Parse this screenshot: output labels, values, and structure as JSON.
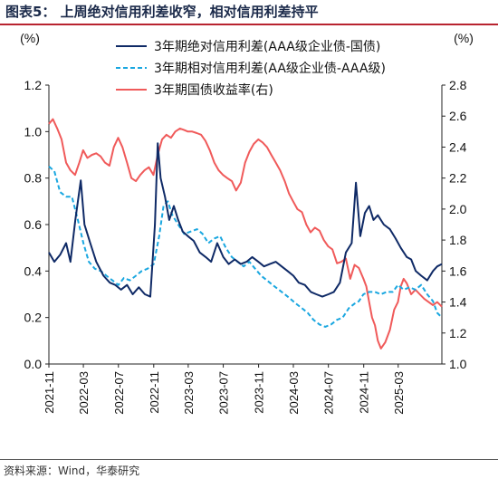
{
  "figure_title": "图表5：  上周绝对信用利差收窄，相对信用利差持平",
  "source_note": "资料来源：Wind，华泰研究",
  "chart_data": {
    "type": "line",
    "left_axis": {
      "unit_label": "(%)",
      "ylim": [
        0.0,
        1.2
      ],
      "ticks": [
        "0.0",
        "0.2",
        "0.4",
        "0.6",
        "0.8",
        "1.0",
        "1.2"
      ]
    },
    "right_axis": {
      "unit_label": "(%)",
      "ylim": [
        1.0,
        2.8
      ],
      "ticks": [
        "1.0",
        "1.2",
        "1.4",
        "1.6",
        "1.8",
        "2.0",
        "2.2",
        "2.4",
        "2.6",
        "2.8"
      ]
    },
    "x_range": [
      "2021-11-01",
      "2025-07-31"
    ],
    "x_tick_labels": [
      "2021-11",
      "2022-03",
      "2022-07",
      "2022-11",
      "2023-03",
      "2023-07",
      "2023-11",
      "2024-03",
      "2024-07",
      "2024-11",
      "2025-03"
    ],
    "legend_position": "top-center",
    "series": [
      {
        "name": "3年期绝对信用利差(AAA级企业债-国债)",
        "axis": "left",
        "color": "#0f2a66",
        "style": "solid",
        "points": [
          [
            "2021-11-01",
            0.48
          ],
          [
            "2021-11-20",
            0.44
          ],
          [
            "2021-12-10",
            0.47
          ],
          [
            "2021-12-31",
            0.52
          ],
          [
            "2022-01-15",
            0.44
          ],
          [
            "2022-02-01",
            0.62
          ],
          [
            "2022-02-20",
            0.79
          ],
          [
            "2022-03-05",
            0.6
          ],
          [
            "2022-03-25",
            0.52
          ],
          [
            "2022-04-15",
            0.44
          ],
          [
            "2022-05-10",
            0.38
          ],
          [
            "2022-06-01",
            0.35
          ],
          [
            "2022-06-20",
            0.34
          ],
          [
            "2022-07-10",
            0.32
          ],
          [
            "2022-07-31",
            0.34
          ],
          [
            "2022-08-20",
            0.3
          ],
          [
            "2022-09-10",
            0.33
          ],
          [
            "2022-10-01",
            0.3
          ],
          [
            "2022-10-20",
            0.29
          ],
          [
            "2022-11-05",
            0.6
          ],
          [
            "2022-11-15",
            0.95
          ],
          [
            "2022-11-25",
            0.8
          ],
          [
            "2022-12-10",
            0.72
          ],
          [
            "2022-12-25",
            0.62
          ],
          [
            "2023-01-10",
            0.68
          ],
          [
            "2023-01-25",
            0.62
          ],
          [
            "2023-02-10",
            0.57
          ],
          [
            "2023-02-28",
            0.55
          ],
          [
            "2023-03-20",
            0.53
          ],
          [
            "2023-04-10",
            0.48
          ],
          [
            "2023-05-01",
            0.46
          ],
          [
            "2023-05-20",
            0.44
          ],
          [
            "2023-06-10",
            0.52
          ],
          [
            "2023-07-01",
            0.46
          ],
          [
            "2023-07-20",
            0.43
          ],
          [
            "2023-08-10",
            0.45
          ],
          [
            "2023-08-31",
            0.43
          ],
          [
            "2023-09-20",
            0.44
          ],
          [
            "2023-10-10",
            0.46
          ],
          [
            "2023-10-31",
            0.44
          ],
          [
            "2023-11-20",
            0.42
          ],
          [
            "2023-12-10",
            0.43
          ],
          [
            "2023-12-31",
            0.44
          ],
          [
            "2024-01-20",
            0.42
          ],
          [
            "2024-02-10",
            0.4
          ],
          [
            "2024-03-01",
            0.38
          ],
          [
            "2024-03-20",
            0.35
          ],
          [
            "2024-04-10",
            0.34
          ],
          [
            "2024-05-01",
            0.31
          ],
          [
            "2024-05-20",
            0.3
          ],
          [
            "2024-06-10",
            0.29
          ],
          [
            "2024-07-01",
            0.3
          ],
          [
            "2024-07-20",
            0.31
          ],
          [
            "2024-08-10",
            0.35
          ],
          [
            "2024-08-31",
            0.48
          ],
          [
            "2024-09-20",
            0.52
          ],
          [
            "2024-10-05",
            0.78
          ],
          [
            "2024-10-20",
            0.55
          ],
          [
            "2024-11-05",
            0.65
          ],
          [
            "2024-11-20",
            0.68
          ],
          [
            "2024-12-05",
            0.62
          ],
          [
            "2024-12-20",
            0.64
          ],
          [
            "2025-01-10",
            0.6
          ],
          [
            "2025-01-31",
            0.58
          ],
          [
            "2025-02-20",
            0.54
          ],
          [
            "2025-03-10",
            0.5
          ],
          [
            "2025-03-31",
            0.46
          ],
          [
            "2025-04-15",
            0.45
          ],
          [
            "2025-05-01",
            0.4
          ],
          [
            "2025-05-20",
            0.38
          ],
          [
            "2025-06-10",
            0.36
          ],
          [
            "2025-06-30",
            0.4
          ],
          [
            "2025-07-15",
            0.42
          ],
          [
            "2025-07-31",
            0.43
          ]
        ]
      },
      {
        "name": "3年期相对信用利差(AA级企业债-AAA级)",
        "axis": "left",
        "color": "#1aa7e0",
        "style": "dashed",
        "points": [
          [
            "2021-11-01",
            0.85
          ],
          [
            "2021-11-20",
            0.83
          ],
          [
            "2021-12-10",
            0.74
          ],
          [
            "2021-12-31",
            0.72
          ],
          [
            "2022-01-20",
            0.72
          ],
          [
            "2022-02-10",
            0.62
          ],
          [
            "2022-03-01",
            0.52
          ],
          [
            "2022-03-20",
            0.44
          ],
          [
            "2022-04-10",
            0.41
          ],
          [
            "2022-05-01",
            0.4
          ],
          [
            "2022-05-20",
            0.38
          ],
          [
            "2022-06-10",
            0.36
          ],
          [
            "2022-07-01",
            0.34
          ],
          [
            "2022-07-20",
            0.37
          ],
          [
            "2022-08-10",
            0.36
          ],
          [
            "2022-08-31",
            0.38
          ],
          [
            "2022-09-20",
            0.4
          ],
          [
            "2022-10-10",
            0.41
          ],
          [
            "2022-11-01",
            0.43
          ],
          [
            "2022-11-20",
            0.55
          ],
          [
            "2022-12-05",
            0.68
          ],
          [
            "2022-12-20",
            0.7
          ],
          [
            "2023-01-05",
            0.64
          ],
          [
            "2023-01-25",
            0.6
          ],
          [
            "2023-02-15",
            0.56
          ],
          [
            "2023-03-10",
            0.57
          ],
          [
            "2023-04-01",
            0.58
          ],
          [
            "2023-04-20",
            0.56
          ],
          [
            "2023-05-10",
            0.52
          ],
          [
            "2023-05-31",
            0.54
          ],
          [
            "2023-06-20",
            0.55
          ],
          [
            "2023-07-10",
            0.5
          ],
          [
            "2023-07-31",
            0.46
          ],
          [
            "2023-08-20",
            0.44
          ],
          [
            "2023-09-10",
            0.42
          ],
          [
            "2023-09-30",
            0.44
          ],
          [
            "2023-10-20",
            0.41
          ],
          [
            "2023-11-10",
            0.38
          ],
          [
            "2023-11-30",
            0.36
          ],
          [
            "2023-12-20",
            0.34
          ],
          [
            "2024-01-10",
            0.32
          ],
          [
            "2024-01-31",
            0.3
          ],
          [
            "2024-02-20",
            0.28
          ],
          [
            "2024-03-10",
            0.26
          ],
          [
            "2024-03-31",
            0.24
          ],
          [
            "2024-04-20",
            0.22
          ],
          [
            "2024-05-10",
            0.19
          ],
          [
            "2024-05-31",
            0.17
          ],
          [
            "2024-06-20",
            0.16
          ],
          [
            "2024-07-10",
            0.17
          ],
          [
            "2024-07-31",
            0.19
          ],
          [
            "2024-08-20",
            0.2
          ],
          [
            "2024-09-10",
            0.24
          ],
          [
            "2024-09-30",
            0.26
          ],
          [
            "2024-10-15",
            0.27
          ],
          [
            "2024-10-31",
            0.3
          ],
          [
            "2024-11-20",
            0.31
          ],
          [
            "2024-12-10",
            0.31
          ],
          [
            "2024-12-31",
            0.3
          ],
          [
            "2025-01-20",
            0.31
          ],
          [
            "2025-02-10",
            0.31
          ],
          [
            "2025-02-28",
            0.34
          ],
          [
            "2025-03-20",
            0.32
          ],
          [
            "2025-04-10",
            0.33
          ],
          [
            "2025-04-30",
            0.32
          ],
          [
            "2025-05-20",
            0.34
          ],
          [
            "2025-06-10",
            0.3
          ],
          [
            "2025-06-30",
            0.27
          ],
          [
            "2025-07-15",
            0.22
          ],
          [
            "2025-07-31",
            0.2
          ]
        ]
      },
      {
        "name": "3年期国债收益率(右)",
        "axis": "right",
        "color": "#f05a5a",
        "style": "solid",
        "points": [
          [
            "2021-11-01",
            2.55
          ],
          [
            "2021-11-15",
            2.58
          ],
          [
            "2021-11-30",
            2.52
          ],
          [
            "2021-12-15",
            2.45
          ],
          [
            "2021-12-31",
            2.3
          ],
          [
            "2022-01-15",
            2.25
          ],
          [
            "2022-01-31",
            2.22
          ],
          [
            "2022-02-15",
            2.3
          ],
          [
            "2022-02-28",
            2.38
          ],
          [
            "2022-03-15",
            2.33
          ],
          [
            "2022-03-31",
            2.35
          ],
          [
            "2022-04-15",
            2.36
          ],
          [
            "2022-04-30",
            2.34
          ],
          [
            "2022-05-15",
            2.3
          ],
          [
            "2022-05-31",
            2.28
          ],
          [
            "2022-06-15",
            2.4
          ],
          [
            "2022-06-30",
            2.46
          ],
          [
            "2022-07-15",
            2.4
          ],
          [
            "2022-07-31",
            2.3
          ],
          [
            "2022-08-15",
            2.2
          ],
          [
            "2022-08-31",
            2.18
          ],
          [
            "2022-09-15",
            2.22
          ],
          [
            "2022-09-30",
            2.25
          ],
          [
            "2022-10-15",
            2.27
          ],
          [
            "2022-10-31",
            2.22
          ],
          [
            "2022-11-15",
            2.35
          ],
          [
            "2022-11-30",
            2.45
          ],
          [
            "2022-12-15",
            2.48
          ],
          [
            "2022-12-31",
            2.46
          ],
          [
            "2023-01-15",
            2.5
          ],
          [
            "2023-01-31",
            2.52
          ],
          [
            "2023-02-15",
            2.51
          ],
          [
            "2023-02-28",
            2.5
          ],
          [
            "2023-03-15",
            2.5
          ],
          [
            "2023-03-31",
            2.49
          ],
          [
            "2023-04-15",
            2.48
          ],
          [
            "2023-04-30",
            2.44
          ],
          [
            "2023-05-15",
            2.38
          ],
          [
            "2023-05-31",
            2.3
          ],
          [
            "2023-06-15",
            2.25
          ],
          [
            "2023-06-30",
            2.22
          ],
          [
            "2023-07-15",
            2.2
          ],
          [
            "2023-07-31",
            2.18
          ],
          [
            "2023-08-15",
            2.12
          ],
          [
            "2023-08-31",
            2.17
          ],
          [
            "2023-09-15",
            2.3
          ],
          [
            "2023-09-30",
            2.37
          ],
          [
            "2023-10-15",
            2.42
          ],
          [
            "2023-10-31",
            2.45
          ],
          [
            "2023-11-15",
            2.43
          ],
          [
            "2023-11-30",
            2.4
          ],
          [
            "2023-12-15",
            2.35
          ],
          [
            "2023-12-31",
            2.3
          ],
          [
            "2024-01-15",
            2.25
          ],
          [
            "2024-01-31",
            2.18
          ],
          [
            "2024-02-15",
            2.1
          ],
          [
            "2024-02-29",
            2.05
          ],
          [
            "2024-03-15",
            2.0
          ],
          [
            "2024-03-31",
            1.98
          ],
          [
            "2024-04-15",
            1.9
          ],
          [
            "2024-04-30",
            1.85
          ],
          [
            "2024-05-15",
            1.88
          ],
          [
            "2024-05-31",
            1.86
          ],
          [
            "2024-06-15",
            1.8
          ],
          [
            "2024-06-30",
            1.76
          ],
          [
            "2024-07-15",
            1.74
          ],
          [
            "2024-07-31",
            1.65
          ],
          [
            "2024-08-15",
            1.66
          ],
          [
            "2024-08-31",
            1.68
          ],
          [
            "2024-09-15",
            1.55
          ],
          [
            "2024-09-30",
            1.64
          ],
          [
            "2024-10-15",
            1.62
          ],
          [
            "2024-10-31",
            1.55
          ],
          [
            "2024-11-10",
            1.5
          ],
          [
            "2024-11-20",
            1.4
          ],
          [
            "2024-11-30",
            1.3
          ],
          [
            "2024-12-10",
            1.25
          ],
          [
            "2024-12-20",
            1.15
          ],
          [
            "2024-12-31",
            1.1
          ],
          [
            "2025-01-15",
            1.14
          ],
          [
            "2025-01-31",
            1.22
          ],
          [
            "2025-02-15",
            1.35
          ],
          [
            "2025-02-28",
            1.4
          ],
          [
            "2025-03-10",
            1.5
          ],
          [
            "2025-03-20",
            1.55
          ],
          [
            "2025-03-31",
            1.52
          ],
          [
            "2025-04-15",
            1.45
          ],
          [
            "2025-04-30",
            1.48
          ],
          [
            "2025-05-15",
            1.45
          ],
          [
            "2025-05-31",
            1.42
          ],
          [
            "2025-06-15",
            1.4
          ],
          [
            "2025-06-30",
            1.38
          ],
          [
            "2025-07-15",
            1.4
          ],
          [
            "2025-07-31",
            1.37
          ]
        ]
      }
    ]
  }
}
